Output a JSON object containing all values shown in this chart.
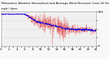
{
  "title": "Milwaukee Weather Normalized and Average Wind Direction (Last 24 Hours)",
  "subtitle": "mph / diam",
  "background_color": "#f8f8f8",
  "plot_bg_color": "#f0f0f0",
  "grid_color": "#bbbbbb",
  "n_points": 288,
  "ylim": [
    0,
    360
  ],
  "yticks_right": [
    0,
    90,
    180,
    270,
    360
  ],
  "ytick_labels_right": [
    "0",
    " ",
    " ",
    " ",
    "360"
  ],
  "title_fontsize": 3.2,
  "subtitle_fontsize": 3.0,
  "tick_fontsize": 3.2,
  "line_color_blue": "#0000ee",
  "bar_color_red": "#dd0000",
  "blue_linewidth": 0.7,
  "red_linewidth": 0.25
}
